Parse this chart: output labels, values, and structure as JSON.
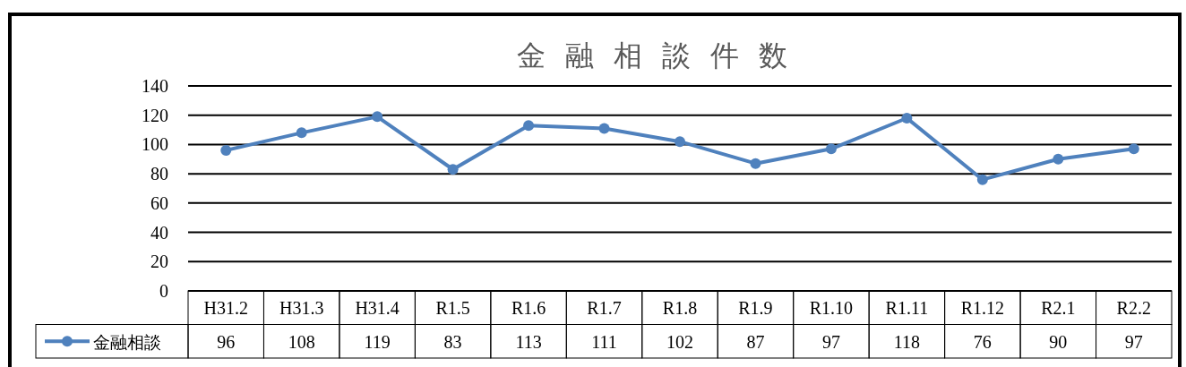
{
  "chart_data": {
    "type": "line",
    "title": "金融相談件数",
    "categories": [
      "H31.2",
      "H31.3",
      "H31.4",
      "R1.5",
      "R1.6",
      "R1.7",
      "R1.8",
      "R1.9",
      "R1.10",
      "R1.11",
      "R1.12",
      "R2.1",
      "R2.2"
    ],
    "series": [
      {
        "name": "金融相談",
        "color": "#4f81bd",
        "values": [
          96,
          108,
          119,
          83,
          113,
          111,
          102,
          87,
          97,
          118,
          76,
          90,
          97
        ]
      }
    ],
    "ylim": [
      0,
      140
    ],
    "yticks": [
      0,
      20,
      40,
      60,
      80,
      100,
      120,
      140
    ],
    "grid": "y",
    "marker": "circle",
    "line_style": "solid",
    "legend": "bottom",
    "data_labels": true
  }
}
